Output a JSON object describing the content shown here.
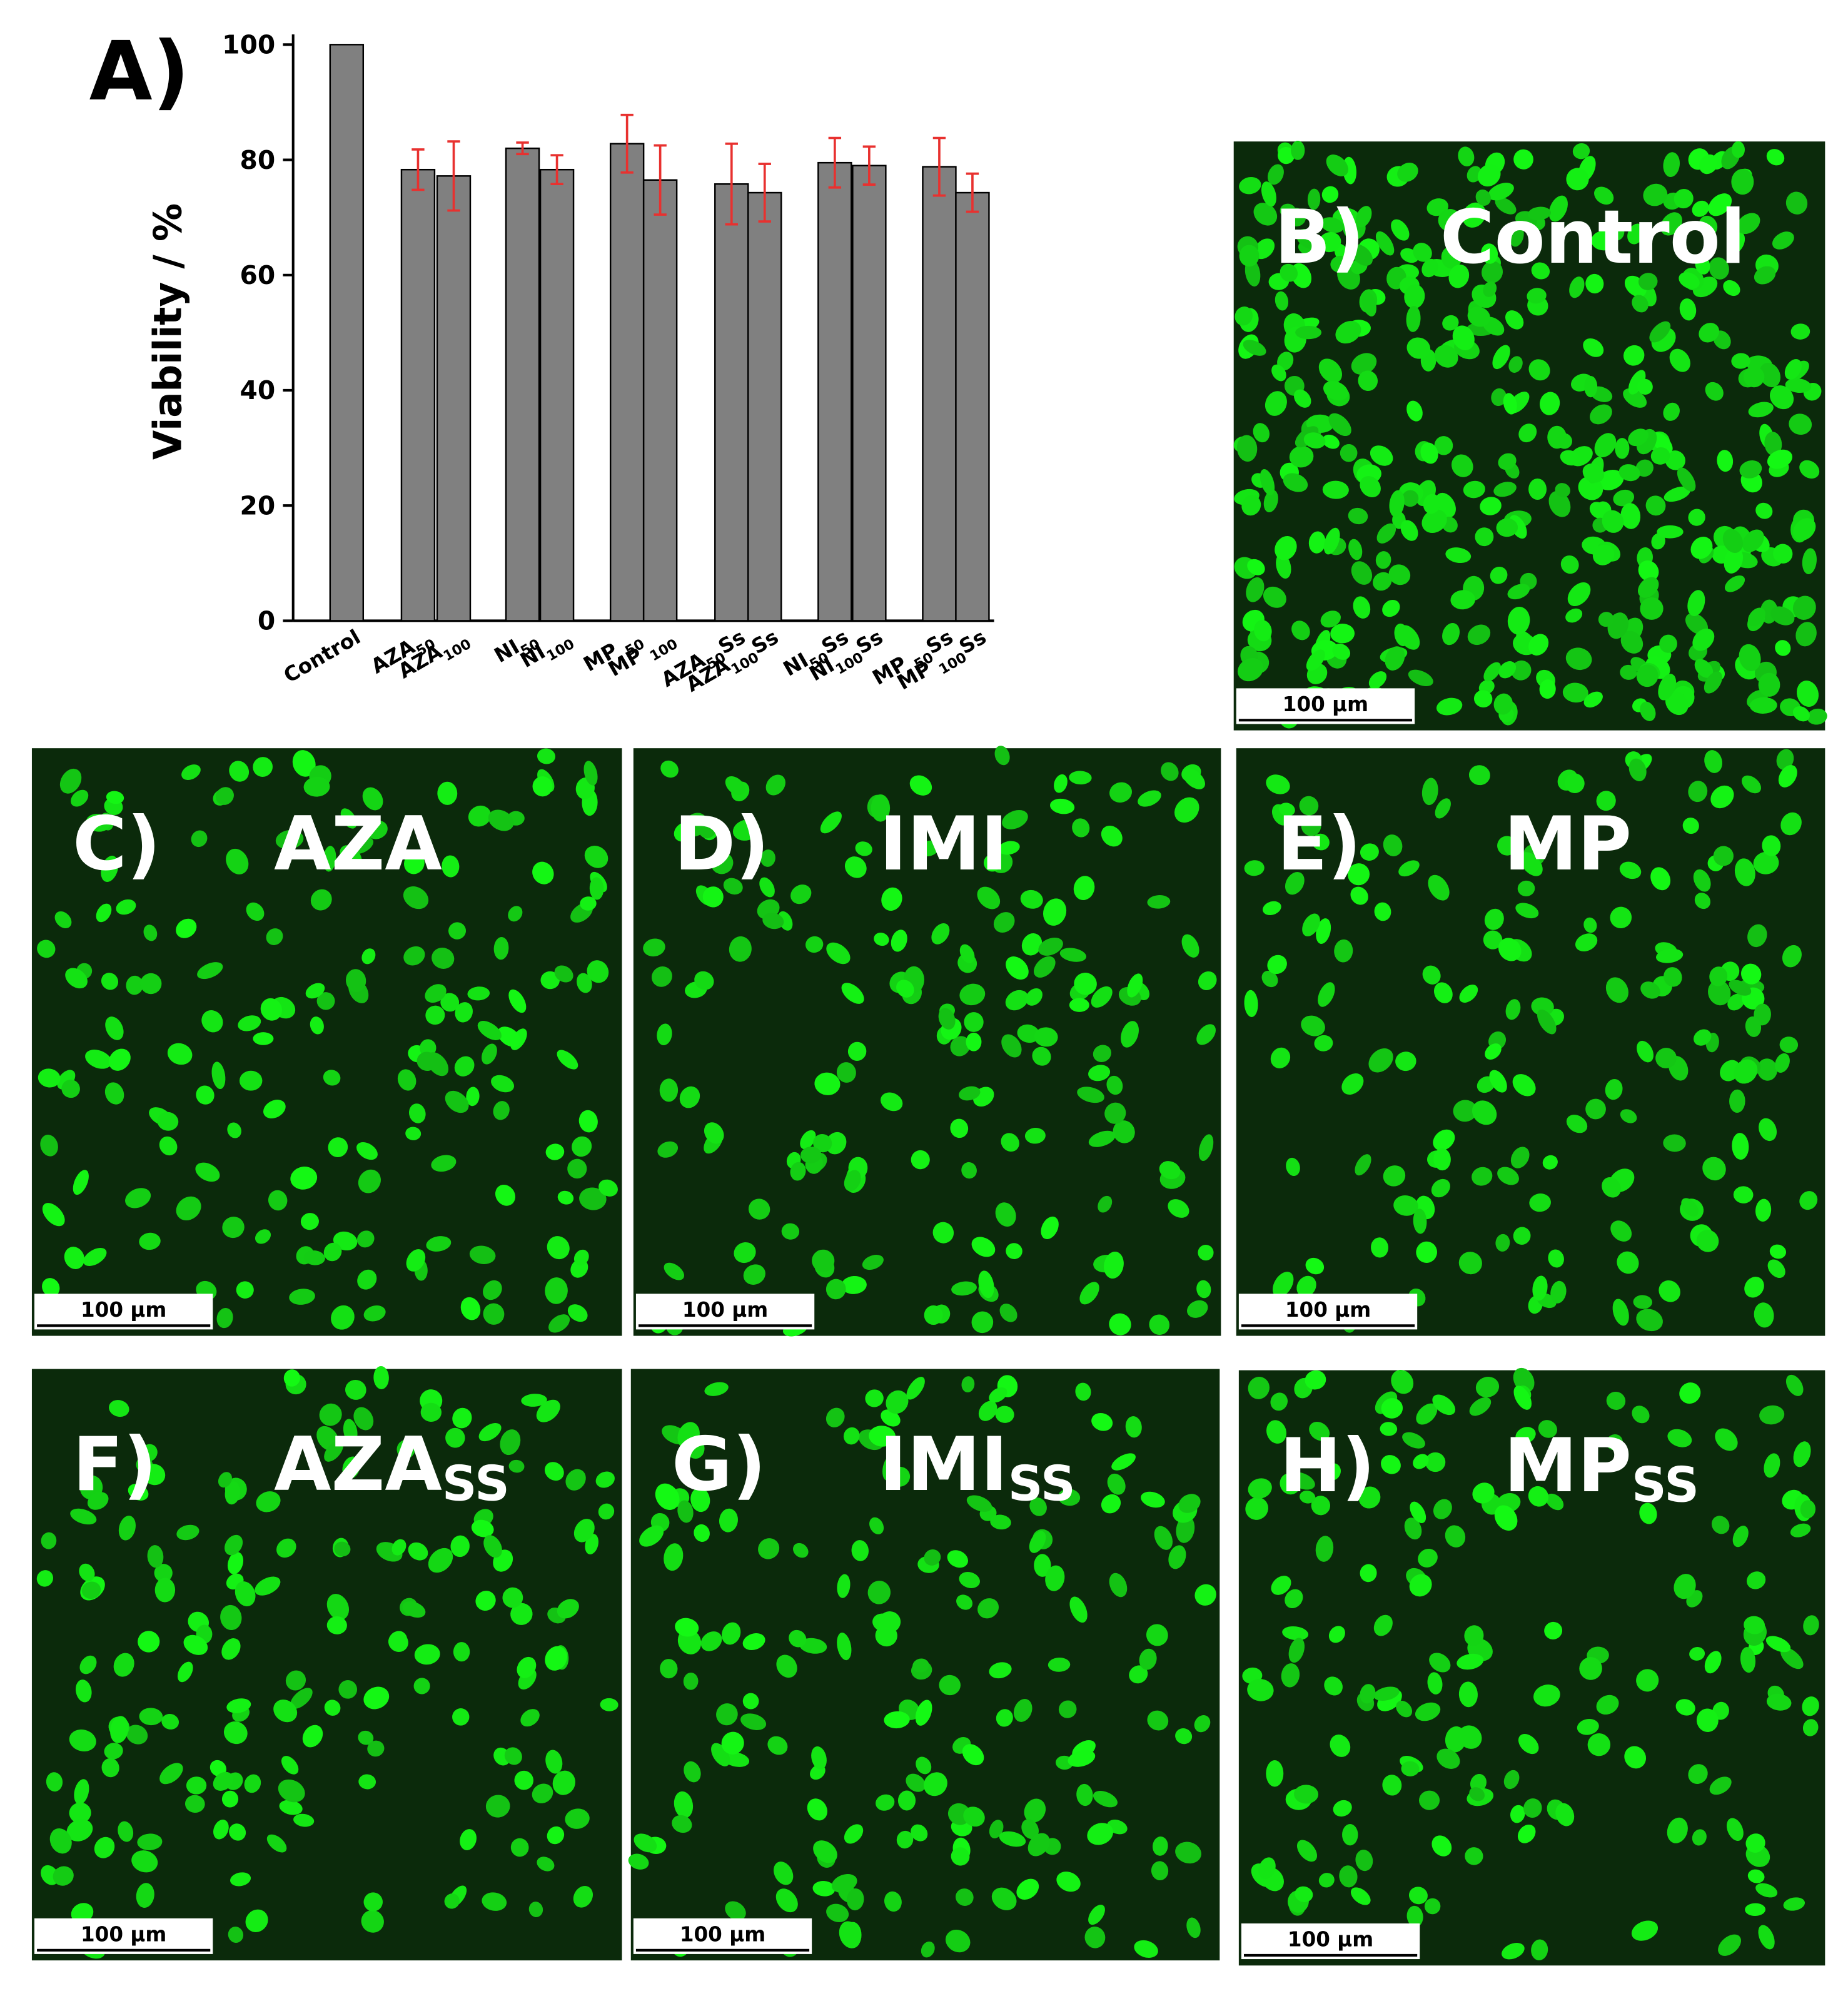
{
  "chart_data": {
    "type": "bar",
    "panel_label": "A)",
    "ylabel": "Viability / %",
    "categories": [
      [
        "Control"
      ],
      [
        "AZA",
        "50"
      ],
      [
        "AZA",
        "100"
      ],
      [
        "NI",
        "50"
      ],
      [
        "NI",
        "100"
      ],
      [
        "MP ",
        "50"
      ],
      [
        "MP ",
        "100"
      ],
      [
        "AZA",
        "50",
        "Ss"
      ],
      [
        "AZA",
        "100",
        "Ss"
      ],
      [
        "NI",
        "50",
        "Ss"
      ],
      [
        "NI",
        "100",
        "Ss"
      ],
      [
        "MP ",
        "50",
        "Ss"
      ],
      [
        "MP ",
        "100",
        "Ss"
      ]
    ],
    "values": [
      100,
      78.3,
      77.2,
      82,
      78.3,
      82.8,
      76.5,
      75.8,
      74.3,
      79.5,
      79,
      78.8,
      74.3
    ],
    "errors": [
      null,
      3.5,
      6,
      1,
      2.5,
      5,
      6,
      7,
      5,
      4.3,
      3.3,
      5,
      3.3
    ],
    "color": "#808080",
    "error_color": "#e8312f",
    "ylim": [
      0,
      100
    ],
    "yticks": [
      0,
      20,
      40,
      60,
      80,
      100
    ]
  },
  "panels": [
    {
      "label": "B)",
      "title": "Control",
      "title_sub": null,
      "scale_bar": "100 µm"
    },
    {
      "label": "C)",
      "title": "AZA",
      "title_sub": null,
      "scale_bar": "100 µm"
    },
    {
      "label": "D)",
      "title": "IMI",
      "title_sub": null,
      "scale_bar": "100 µm"
    },
    {
      "label": "E)",
      "title": "MP",
      "title_sub": null,
      "scale_bar": "100 µm"
    },
    {
      "label": "F)",
      "title": "AZA",
      "title_sub": "SS",
      "scale_bar": "100 µm"
    },
    {
      "label": "G)",
      "title": "IMI",
      "title_sub": "SS",
      "scale_bar": "100 µm"
    },
    {
      "label": "H)",
      "title": "MP",
      "title_sub": "SS",
      "scale_bar": "100 µm"
    }
  ]
}
